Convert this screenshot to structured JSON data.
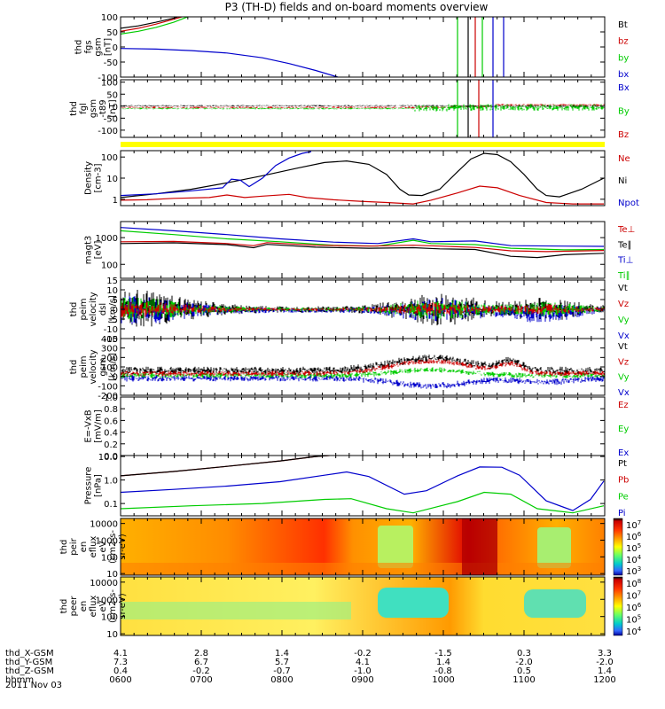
{
  "chart_data": {
    "type": "line",
    "title": "P3 (TH-D) fields and on-board moments overview",
    "date": "2011 Nov 03",
    "panels": [
      {
        "id": "fgs",
        "ylabel": [
          "thd",
          "fgs",
          "gsm",
          "[nT]"
        ],
        "ylim": [
          -100,
          100
        ],
        "yticks": [
          {
            "v": 100,
            "l": "100"
          },
          {
            "v": 50,
            "l": "50"
          },
          {
            "v": 0,
            "l": "0"
          },
          {
            "v": -50,
            "l": "-50"
          },
          {
            "v": -100,
            "l": "-100"
          }
        ],
        "legend": [
          {
            "label": "Bt",
            "color": "#000000"
          },
          {
            "label": "bz",
            "color": "#cc0000"
          },
          {
            "label": "by",
            "color": "#00cc00"
          },
          {
            "label": "bx",
            "color": "#0000cc"
          }
        ]
      },
      {
        "id": "fgl",
        "ylabel": [
          "thd",
          "fgl",
          "gsm",
          "-t89",
          "[nT]"
        ],
        "ylim": [
          -130,
          110
        ],
        "yticks": [
          {
            "v": 100,
            "l": "100"
          },
          {
            "v": 50,
            "l": "50"
          },
          {
            "v": 0,
            "l": "0"
          },
          {
            "v": -50,
            "l": "-50"
          },
          {
            "v": -100,
            "l": "-100"
          }
        ],
        "legend": [
          {
            "label": "Bx",
            "color": "#0000cc"
          },
          {
            "label": "By",
            "color": "#00cc00"
          },
          {
            "label": "Bz",
            "color": "#cc0000"
          }
        ]
      },
      {
        "id": "density",
        "ylabel": [
          "Density",
          "[cm-3]"
        ],
        "ylim": [
          0.5,
          200
        ],
        "log": true,
        "yticks": [
          {
            "v": 100,
            "l": "100"
          },
          {
            "v": 10,
            "l": "10"
          },
          {
            "v": 1,
            "l": "1"
          }
        ],
        "legend": [
          {
            "label": "Ne",
            "color": "#cc0000"
          },
          {
            "label": "Ni",
            "color": "#000000"
          },
          {
            "label": "Npot",
            "color": "#0000cc"
          }
        ]
      },
      {
        "id": "temp",
        "ylabel": [
          "magt3",
          "[eV]"
        ],
        "ylim": [
          30,
          4000
        ],
        "log": true,
        "yticks": [
          {
            "v": 1000,
            "l": "1000"
          },
          {
            "v": 100,
            "l": "100"
          }
        ],
        "legend": [
          {
            "label": "Te⊥",
            "color": "#cc0000"
          },
          {
            "label": "Te∥",
            "color": "#000000"
          },
          {
            "label": "Ti⊥",
            "color": "#0000cc"
          },
          {
            "label": "Ti∥",
            "color": "#00cc00"
          }
        ]
      },
      {
        "id": "peim_dsl",
        "ylabel": [
          "thd",
          "peim",
          "velocity",
          "dsl",
          "[km/s]"
        ],
        "ylim": [
          -15,
          15
        ],
        "yticks": [
          {
            "v": 15,
            "l": "15"
          },
          {
            "v": 10,
            "l": "10"
          },
          {
            "v": 5,
            "l": "5"
          },
          {
            "v": 0,
            "l": "0"
          },
          {
            "v": -5,
            "l": "-5"
          },
          {
            "v": -10,
            "l": "-10"
          },
          {
            "v": -15,
            "l": "-15"
          }
        ],
        "legend": [
          {
            "label": "Vt",
            "color": "#000000"
          },
          {
            "label": "Vz",
            "color": "#cc0000"
          },
          {
            "label": "Vy",
            "color": "#00cc00"
          },
          {
            "label": "Vx",
            "color": "#0000cc"
          }
        ]
      },
      {
        "id": "peim_gsm",
        "ylabel": [
          "thd",
          "peim",
          "velocity",
          "gsm",
          "[km/s]"
        ],
        "ylim": [
          -200,
          400
        ],
        "yticks": [
          {
            "v": 400,
            "l": "400"
          },
          {
            "v": 300,
            "l": "300"
          },
          {
            "v": 200,
            "l": "200"
          },
          {
            "v": 100,
            "l": "100"
          },
          {
            "v": 0,
            "l": "0"
          },
          {
            "v": -100,
            "l": "-100"
          },
          {
            "v": -200,
            "l": "-200"
          }
        ],
        "legend": [
          {
            "label": "Vt",
            "color": "#000000"
          },
          {
            "label": "Vz",
            "color": "#cc0000"
          },
          {
            "label": "Vy",
            "color": "#00cc00"
          },
          {
            "label": "Vx",
            "color": "#0000cc"
          }
        ]
      },
      {
        "id": "efield",
        "ylabel": [
          "E=-VxB",
          "[mV/m]"
        ],
        "ylim": [
          0,
          1
        ],
        "yticks": [
          {
            "v": 1.0,
            "l": "1.0"
          },
          {
            "v": 0.8,
            "l": "0.8"
          },
          {
            "v": 0.6,
            "l": "0.6"
          },
          {
            "v": 0.4,
            "l": "0.4"
          },
          {
            "v": 0.2,
            "l": "0.2"
          },
          {
            "v": 0.0,
            "l": "0.0"
          }
        ],
        "legend": [
          {
            "label": "Ez",
            "color": "#cc0000"
          },
          {
            "label": "Ey",
            "color": "#00cc00"
          },
          {
            "label": "Ex",
            "color": "#0000cc"
          }
        ]
      },
      {
        "id": "pressure",
        "ylabel": [
          "Pressure",
          "[nPa]"
        ],
        "ylim": [
          0.03,
          11
        ],
        "log": true,
        "yticks": [
          {
            "v": 10,
            "l": "10.0"
          },
          {
            "v": 1,
            "l": "1.0"
          },
          {
            "v": 0.1,
            "l": "0.1"
          }
        ],
        "legend": [
          {
            "label": "Pt",
            "color": "#000000"
          },
          {
            "label": "Pb",
            "color": "#cc0000"
          },
          {
            "label": "Pe",
            "color": "#00cc00"
          },
          {
            "label": "Pi",
            "color": "#0000cc"
          }
        ]
      },
      {
        "id": "peir",
        "type": "heatmap",
        "ylabel": [
          "thd",
          "peir",
          "en",
          "eflux",
          "eV",
          "(cm2-s-",
          "sr-eV)"
        ],
        "ylim": [
          8,
          20000
        ],
        "log": true,
        "yticks": [
          {
            "v": 10000,
            "l": "10000"
          },
          {
            "v": 1000,
            "l": "1000"
          },
          {
            "v": 100,
            "l": "100"
          },
          {
            "v": 10,
            "l": "10"
          }
        ],
        "colorbar": {
          "base": "10",
          "exps": [
            "7",
            "6",
            "5",
            "4",
            "3"
          ]
        }
      },
      {
        "id": "peer",
        "type": "heatmap",
        "ylabel": [
          "thd",
          "peer",
          "en",
          "eflux",
          "eV",
          "(cm2-s-",
          "sr-eV)"
        ],
        "ylim": [
          8,
          20000
        ],
        "log": true,
        "yticks": [
          {
            "v": 10000,
            "l": "10000"
          },
          {
            "v": 1000,
            "l": "1000"
          },
          {
            "v": 100,
            "l": "100"
          },
          {
            "v": 10,
            "l": "10"
          }
        ],
        "colorbar": {
          "base": "10",
          "exps": [
            "8",
            "7",
            "6",
            "5",
            "4"
          ]
        }
      }
    ],
    "series": {
      "fgs_Bt": [
        [
          0,
          62
        ],
        [
          20,
          70
        ],
        [
          40,
          82
        ],
        [
          60,
          96
        ],
        [
          70,
          105
        ]
      ],
      "fgs_bz": [
        [
          0,
          52
        ],
        [
          20,
          62
        ],
        [
          40,
          76
        ],
        [
          60,
          92
        ],
        [
          75,
          105
        ]
      ],
      "fgs_by": [
        [
          0,
          43
        ],
        [
          20,
          52
        ],
        [
          40,
          65
        ],
        [
          60,
          82
        ],
        [
          80,
          105
        ]
      ],
      "fgs_bx": [
        [
          0,
          -5
        ],
        [
          40,
          -7
        ],
        [
          80,
          -12
        ],
        [
          120,
          -20
        ],
        [
          160,
          -36
        ],
        [
          190,
          -55
        ],
        [
          220,
          -78
        ],
        [
          245,
          -100
        ]
      ],
      "dens_Ni": [
        [
          0,
          1.2
        ],
        [
          40,
          1.8
        ],
        [
          80,
          3
        ],
        [
          120,
          6
        ],
        [
          160,
          13
        ],
        [
          200,
          30
        ],
        [
          230,
          55
        ],
        [
          255,
          65
        ],
        [
          280,
          45
        ],
        [
          300,
          15
        ],
        [
          315,
          3
        ],
        [
          325,
          1.6
        ],
        [
          340,
          1.5
        ],
        [
          360,
          3
        ],
        [
          380,
          20
        ],
        [
          395,
          80
        ],
        [
          410,
          150
        ],
        [
          425,
          130
        ],
        [
          440,
          60
        ],
        [
          455,
          15
        ],
        [
          470,
          3
        ],
        [
          480,
          1.5
        ],
        [
          495,
          1.3
        ],
        [
          520,
          3
        ],
        [
          545,
          10
        ]
      ],
      "dens_Ne": [
        [
          0,
          0.9
        ],
        [
          30,
          0.95
        ],
        [
          60,
          1.1
        ],
        [
          100,
          1.2
        ],
        [
          120,
          1.6
        ],
        [
          140,
          1.2
        ],
        [
          160,
          1.4
        ],
        [
          190,
          1.7
        ],
        [
          210,
          1.2
        ],
        [
          240,
          0.95
        ],
        [
          270,
          0.8
        ],
        [
          300,
          0.7
        ],
        [
          330,
          0.6
        ],
        [
          350,
          0.9
        ],
        [
          380,
          2
        ],
        [
          405,
          4.2
        ],
        [
          425,
          3.5
        ],
        [
          450,
          1.5
        ],
        [
          480,
          0.7
        ],
        [
          510,
          0.6
        ],
        [
          545,
          0.6
        ]
      ],
      "dens_Npot": [
        [
          0,
          1.5
        ],
        [
          40,
          1.8
        ],
        [
          80,
          2.5
        ],
        [
          115,
          3.5
        ],
        [
          125,
          9
        ],
        [
          135,
          8
        ],
        [
          145,
          4
        ],
        [
          160,
          10
        ],
        [
          175,
          40
        ],
        [
          190,
          90
        ],
        [
          205,
          150
        ],
        [
          215,
          180
        ]
      ],
      "temp_TiPerp": [
        [
          0,
          2400
        ],
        [
          60,
          1800
        ],
        [
          120,
          1300
        ],
        [
          180,
          900
        ],
        [
          240,
          680
        ],
        [
          290,
          600
        ],
        [
          330,
          900
        ],
        [
          350,
          700
        ],
        [
          400,
          750
        ],
        [
          440,
          500
        ],
        [
          500,
          480
        ],
        [
          545,
          470
        ]
      ],
      "temp_TiPar": [
        [
          0,
          1800
        ],
        [
          60,
          1300
        ],
        [
          120,
          900
        ],
        [
          180,
          700
        ],
        [
          240,
          520
        ],
        [
          290,
          480
        ],
        [
          330,
          800
        ],
        [
          350,
          600
        ],
        [
          400,
          550
        ],
        [
          440,
          400
        ],
        [
          500,
          350
        ],
        [
          545,
          360
        ]
      ],
      "temp_TePerp": [
        [
          0,
          700
        ],
        [
          60,
          720
        ],
        [
          120,
          600
        ],
        [
          150,
          500
        ],
        [
          165,
          650
        ],
        [
          220,
          520
        ],
        [
          280,
          480
        ],
        [
          330,
          520
        ],
        [
          360,
          480
        ],
        [
          400,
          430
        ],
        [
          440,
          320
        ],
        [
          480,
          300
        ],
        [
          545,
          330
        ]
      ],
      "temp_TePar": [
        [
          0,
          600
        ],
        [
          60,
          640
        ],
        [
          120,
          550
        ],
        [
          150,
          420
        ],
        [
          165,
          560
        ],
        [
          220,
          440
        ],
        [
          280,
          400
        ],
        [
          330,
          420
        ],
        [
          360,
          380
        ],
        [
          400,
          360
        ],
        [
          440,
          200
        ],
        [
          470,
          180
        ],
        [
          500,
          230
        ],
        [
          545,
          260
        ]
      ]
    },
    "orbit": {
      "rows": [
        "thd_X-GSM",
        "thd_Y-GSM",
        "thd_Z-GSM",
        "hhmm"
      ],
      "columns": [
        {
          "x": "4.1",
          "y": "7.3",
          "z": "0.4",
          "t": "0600"
        },
        {
          "x": "2.8",
          "y": "6.7",
          "z": "-0.2",
          "t": "0700"
        },
        {
          "x": "1.4",
          "y": "5.7",
          "z": "-0.7",
          "t": "0800"
        },
        {
          "x": "-0.2",
          "y": "4.1",
          "z": "-1.0",
          "t": "0900"
        },
        {
          "x": "-1.5",
          "y": "1.4",
          "z": "-0.8",
          "t": "1000"
        },
        {
          "x": "0.3",
          "y": "-2.0",
          "z": "0.5",
          "t": "1100"
        },
        {
          "x": "3.3",
          "y": "-2.0",
          "z": "1.4",
          "t": "1200"
        }
      ]
    }
  }
}
